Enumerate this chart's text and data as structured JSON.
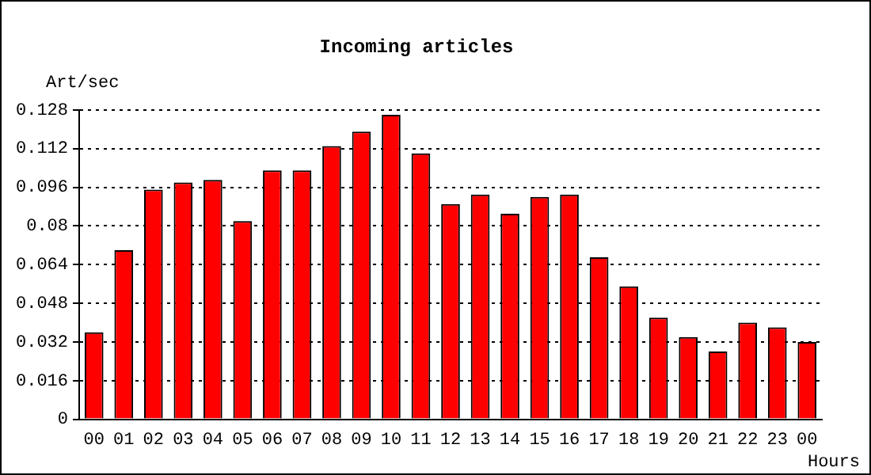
{
  "chart_data": {
    "type": "bar",
    "title": "Incoming articles",
    "ylabel": "Art/sec",
    "xlabel": "Hours",
    "categories": [
      "00",
      "01",
      "02",
      "03",
      "04",
      "05",
      "06",
      "07",
      "08",
      "09",
      "10",
      "11",
      "12",
      "13",
      "14",
      "15",
      "16",
      "17",
      "18",
      "19",
      "20",
      "21",
      "22",
      "23",
      "00"
    ],
    "values": [
      0.036,
      0.07,
      0.095,
      0.098,
      0.099,
      0.082,
      0.103,
      0.103,
      0.113,
      0.119,
      0.126,
      0.11,
      0.089,
      0.093,
      0.085,
      0.092,
      0.093,
      0.067,
      0.055,
      0.042,
      0.034,
      0.028,
      0.04,
      0.038,
      0.032
    ],
    "color": "#ff0000",
    "ylim": [
      0,
      0.128
    ],
    "yticks": [
      0,
      0.016,
      0.032,
      0.048,
      0.064,
      0.08,
      0.096,
      0.112,
      0.128
    ],
    "grid": "y",
    "legend": false
  }
}
